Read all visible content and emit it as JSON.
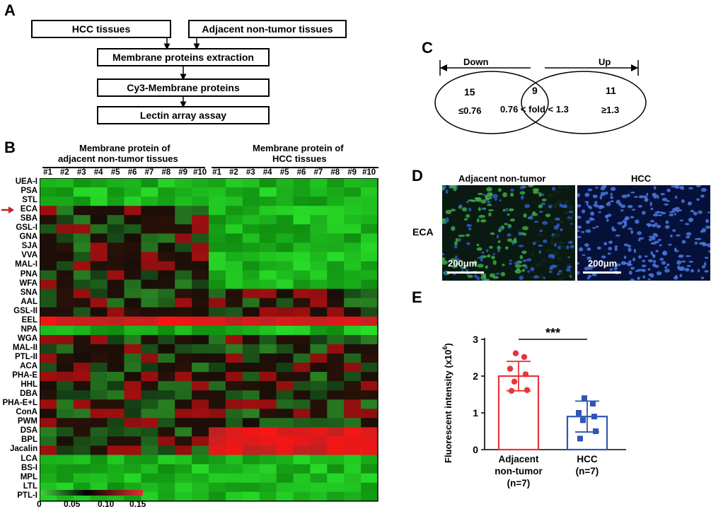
{
  "panel_a": {
    "letter": "A",
    "hcc_tissues": "HCC tissues",
    "adjacent_tissues": "Adjacent non-tumor tissues",
    "extraction": "Membrane proteins extraction",
    "cy3": "Cy3-Membrane proteins",
    "lectin": "Lectin array assay"
  },
  "panel_b": {
    "letter": "B",
    "group_adjacent": "Membrane protein of adjacent non-tumor tissues",
    "group_adjacent_line1": "Membrane protein of",
    "group_adjacent_line2": "adjacent non-tumor tissues",
    "group_hcc_line1": "Membrane protein of",
    "group_hcc_line2": "HCC tissues",
    "columns": [
      "#1",
      "#2",
      "#3",
      "#4",
      "#5",
      "#6",
      "#7",
      "#8",
      "#9",
      "#10",
      "#1",
      "#2",
      "#3",
      "#4",
      "#5",
      "#6",
      "#7",
      "#8",
      "#9",
      "#10"
    ],
    "rows": [
      "UEA-I",
      "PSA",
      "STL",
      "ECA",
      "SBA",
      "GSL-I",
      "GNA",
      "SJA",
      "VVA",
      "MAL-I",
      "PNA",
      "WFA",
      "SNA",
      "AAL",
      "GSL-II",
      "EEL",
      "NPA",
      "WGA",
      "MAL-II",
      "PTL-II",
      "ACA",
      "PHA-E",
      "HHL",
      "DBA",
      "PHA-E+L",
      "ConA",
      "PWM",
      "DSA",
      "BPL",
      "Jacalin",
      "LCA",
      "BS-I",
      "MPL",
      "LTL",
      "PTL-I"
    ],
    "highlight_row": "ECA",
    "highlight_color": "#c0202a",
    "colorbar_ticks": [
      "0",
      "0.05",
      "0.10",
      "0.15"
    ],
    "colorbar_colors": [
      "#3fcf3f",
      "#000000",
      "#e03030"
    ]
  },
  "panel_c": {
    "letter": "C",
    "down": "Down",
    "up": "Up",
    "left_count": "15",
    "left_range": "≤0.76",
    "mid_count": "9",
    "mid_range": "0.76 < fold < 1.3",
    "right_count": "11",
    "right_range": "≥1.3"
  },
  "panel_d": {
    "letter": "D",
    "left_title": "Adjacent non-tumor",
    "right_title": "HCC",
    "row_label": "ECA",
    "scale_left": "200μm",
    "scale_right": "200μm"
  },
  "chart_data": {
    "type": "bar",
    "letter": "E",
    "categories": [
      "Adjacent non-tumor (n=7)",
      "HCC (n=7)"
    ],
    "category_lines": [
      [
        "Adjacent",
        "non-tumor",
        "(n=7)"
      ],
      [
        "HCC",
        "(n=7)"
      ]
    ],
    "values": [
      2.0,
      0.9
    ],
    "error": [
      0.4,
      0.42
    ],
    "points": [
      [
        2.62,
        2.52,
        2.2,
        2.05,
        1.85,
        1.62,
        1.6
      ],
      [
        1.4,
        1.25,
        1.0,
        0.9,
        0.8,
        0.5,
        0.3
      ]
    ],
    "colors": [
      "#e8343a",
      "#2f55b5"
    ],
    "ylabel": "Fluorescent intensity (x10",
    "ylabel_sup": "6",
    "ylabel_end": ")",
    "ylim": [
      0,
      3
    ],
    "yticks": [
      "0",
      "1",
      "2",
      "3"
    ],
    "significance": "***"
  }
}
